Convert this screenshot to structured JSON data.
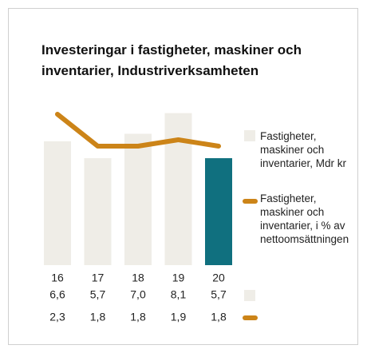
{
  "chart_data": {
    "type": "bar",
    "title": "Investeringar i fastigheter, maskiner och inventarier, Industriverksamheten",
    "categories": [
      "16",
      "17",
      "18",
      "19",
      "20"
    ],
    "series": [
      {
        "name": "Fastigheter, maskiner och inventarier, Mdr kr",
        "type": "bar",
        "colors": [
          "#efede7",
          "#efede7",
          "#efede7",
          "#efede7",
          "#10707f"
        ],
        "values": [
          6.6,
          5.7,
          7.0,
          8.1,
          5.7
        ],
        "value_labels": [
          "6,6",
          "5,7",
          "7,0",
          "8,1",
          "5,7"
        ]
      },
      {
        "name": "Fastigheter, maskiner och inventarier, i % av netto­omsättningen",
        "type": "line",
        "color": "#cc8418",
        "values": [
          2.3,
          1.8,
          1.8,
          1.9,
          1.8
        ],
        "value_labels": [
          "2,3",
          "1,8",
          "1,8",
          "1,9",
          "1,8"
        ]
      }
    ]
  }
}
